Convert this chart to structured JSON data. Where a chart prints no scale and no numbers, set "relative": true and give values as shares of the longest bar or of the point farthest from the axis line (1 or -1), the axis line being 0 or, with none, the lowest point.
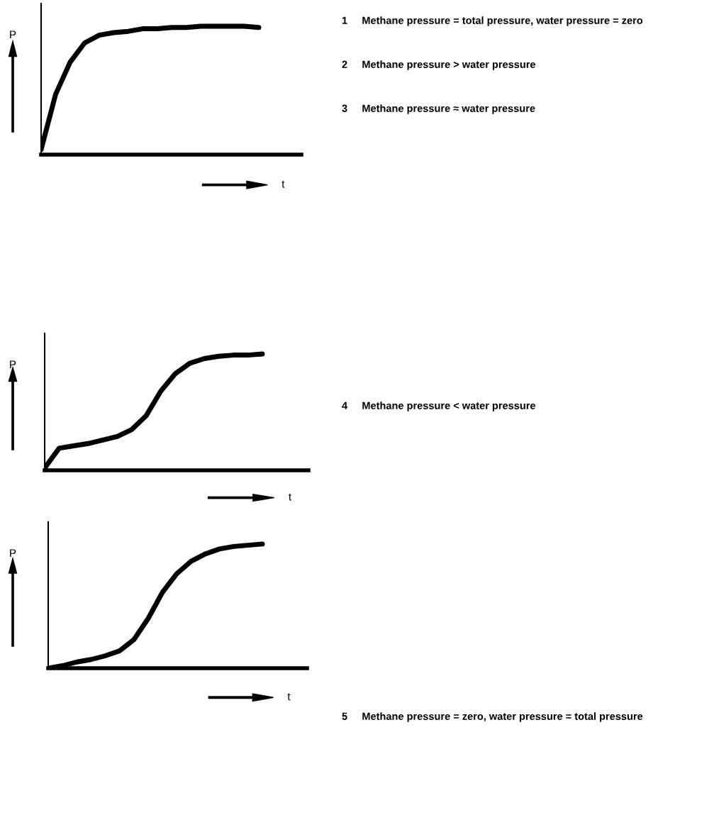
{
  "chart_data": [
    {
      "type": "line",
      "relative": true,
      "xlabel": "t",
      "ylabel": "P",
      "categories": [
        null,
        null,
        null,
        null,
        null,
        null,
        null,
        null,
        null,
        null,
        null,
        null,
        null,
        null,
        null,
        null
      ],
      "series": [
        {
          "color": "#000000",
          "values": [
            0.04,
            0.47,
            0.72,
            0.87,
            0.93,
            0.95,
            0.96,
            0.98,
            0.98,
            0.99,
            0.99,
            1,
            1,
            1,
            1,
            0.99
          ]
        }
      ],
      "annotations": [
        "1     Methane pressure = total pressure, water pressure = zero",
        "2     Methane pressure > water pressure",
        "3     Methane pressure ≈ water pressure"
      ]
    },
    {
      "type": "line",
      "relative": true,
      "xlabel": "t",
      "ylabel": "P",
      "categories": [
        null,
        null,
        null,
        null,
        null,
        null,
        null,
        null,
        null,
        null,
        null,
        null,
        null,
        null,
        null,
        null
      ],
      "series": [
        {
          "color": "#000000",
          "values": [
            0.02,
            0.19,
            0.21,
            0.23,
            0.26,
            0.29,
            0.35,
            0.47,
            0.68,
            0.83,
            0.92,
            0.96,
            0.98,
            0.99,
            0.99,
            1
          ]
        }
      ],
      "annotations": [
        "4     Methane pressure < water pressure"
      ]
    },
    {
      "type": "line",
      "relative": true,
      "xlabel": "t",
      "ylabel": "P",
      "categories": [
        null,
        null,
        null,
        null,
        null,
        null,
        null,
        null,
        null,
        null,
        null,
        null,
        null,
        null,
        null,
        null
      ],
      "series": [
        {
          "color": "#000000",
          "values": [
            0,
            0.02,
            0.05,
            0.07,
            0.1,
            0.14,
            0.23,
            0.4,
            0.61,
            0.76,
            0.86,
            0.92,
            0.96,
            0.98,
            0.99,
            1
          ]
        }
      ],
      "annotations": [
        "5     Methane pressure = zero, water pressure = total pressure"
      ]
    }
  ]
}
